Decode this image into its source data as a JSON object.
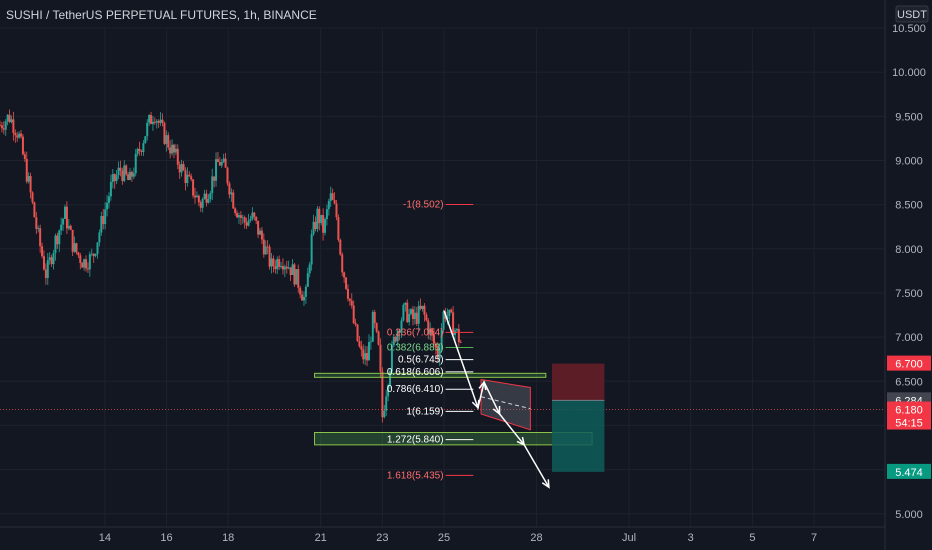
{
  "header": {
    "title": "SUSHI / TetherUS PERPETUAL FUTURES, 1h, BINANCE",
    "currency_badge": "USDT"
  },
  "colors": {
    "background": "#131722",
    "grid": "#1e222d",
    "text": "#b2b5be",
    "up": "#26a69a",
    "down": "#ef5350",
    "fib_red": "#f23645",
    "fib_green": "#4caf50",
    "zone_fill": "#4caf50",
    "target_fill": "#0f5d5a",
    "stop_fill": "#6b1f28"
  },
  "chart_data": {
    "type": "candlestick",
    "title": "SUSHI / TetherUS PERPETUAL FUTURES, 1h, BINANCE",
    "ylim": [
      4.85,
      10.5
    ],
    "xlim": [
      10.6,
      39.3
    ],
    "y_ticks": [
      {
        "value": 5.0,
        "label": "5.000"
      },
      {
        "value": 5.5,
        "label": "5.500"
      },
      {
        "value": 6.0,
        "label": "6.000"
      },
      {
        "value": 6.5,
        "label": "6.500"
      },
      {
        "value": 7.0,
        "label": "7.000"
      },
      {
        "value": 7.5,
        "label": "7.500"
      },
      {
        "value": 8.0,
        "label": "8.000"
      },
      {
        "value": 8.5,
        "label": "8.500"
      },
      {
        "value": 9.0,
        "label": "9.000"
      },
      {
        "value": 9.5,
        "label": "9.500"
      },
      {
        "value": 10.0,
        "label": "10.000"
      },
      {
        "value": 10.5,
        "label": "10.500"
      }
    ],
    "x_ticks": [
      {
        "day": 14,
        "label": "14"
      },
      {
        "day": 16,
        "label": "16"
      },
      {
        "day": 18,
        "label": "18"
      },
      {
        "day": 21,
        "label": "21"
      },
      {
        "day": 23,
        "label": "23"
      },
      {
        "day": 25,
        "label": "25"
      },
      {
        "day": 28,
        "label": "28"
      },
      {
        "day": 31,
        "label": "Jul"
      },
      {
        "day": 33,
        "label": "3"
      },
      {
        "day": 35,
        "label": "5"
      },
      {
        "day": 37,
        "label": "7"
      }
    ],
    "price_path": [
      [
        10.6,
        9.4
      ],
      [
        10.9,
        9.5
      ],
      [
        11.2,
        9.3
      ],
      [
        11.5,
        8.8
      ],
      [
        11.8,
        8.2
      ],
      [
        12.1,
        7.7
      ],
      [
        12.4,
        8.1
      ],
      [
        12.7,
        8.4
      ],
      [
        13.0,
        8.0
      ],
      [
        13.3,
        7.85
      ],
      [
        13.6,
        7.9
      ],
      [
        13.9,
        8.3
      ],
      [
        14.2,
        8.7
      ],
      [
        14.5,
        8.9
      ],
      [
        14.8,
        8.75
      ],
      [
        15.1,
        9.1
      ],
      [
        15.4,
        9.4
      ],
      [
        15.6,
        9.55
      ],
      [
        15.9,
        9.3
      ],
      [
        16.2,
        9.1
      ],
      [
        16.5,
        8.9
      ],
      [
        16.8,
        8.7
      ],
      [
        17.1,
        8.5
      ],
      [
        17.4,
        8.7
      ],
      [
        17.7,
        9.0
      ],
      [
        17.9,
        8.9
      ],
      [
        18.2,
        8.5
      ],
      [
        18.5,
        8.3
      ],
      [
        18.8,
        8.35
      ],
      [
        19.1,
        8.1
      ],
      [
        19.4,
        7.8
      ],
      [
        19.7,
        7.9
      ],
      [
        20.0,
        7.8
      ],
      [
        20.3,
        7.6
      ],
      [
        20.5,
        7.4
      ],
      [
        20.7,
        8.1
      ],
      [
        20.9,
        8.4
      ],
      [
        21.1,
        8.2
      ],
      [
        21.3,
        8.6
      ],
      [
        21.5,
        8.4
      ],
      [
        21.7,
        7.8
      ],
      [
        21.9,
        7.5
      ],
      [
        22.1,
        7.1
      ],
      [
        22.3,
        6.8
      ],
      [
        22.5,
        6.75
      ],
      [
        22.7,
        7.2
      ],
      [
        22.9,
        6.8
      ],
      [
        23.0,
        6.1
      ],
      [
        23.2,
        6.6
      ],
      [
        23.4,
        7.0
      ],
      [
        23.7,
        7.3
      ],
      [
        24.0,
        7.2
      ],
      [
        24.3,
        7.3
      ],
      [
        24.6,
        7.0
      ],
      [
        24.8,
        6.8
      ],
      [
        25.0,
        7.3
      ],
      [
        25.2,
        7.2
      ],
      [
        25.4,
        7.05
      ],
      [
        25.6,
        6.9
      ]
    ],
    "projection": [
      {
        "day": 25.0,
        "value": 7.3
      },
      {
        "day": 26.1,
        "value": 6.2
      },
      {
        "day": 26.3,
        "value": 6.49
      },
      {
        "day": 26.8,
        "value": 6.13
      },
      {
        "day": 27.6,
        "value": 5.78
      },
      {
        "day": 28.4,
        "value": 5.3
      }
    ],
    "fib_levels": [
      {
        "label": "-1(8.502)",
        "value": 8.502,
        "color": "red"
      },
      {
        "label": "0.236(7.054)",
        "value": 7.054,
        "color": "red"
      },
      {
        "label": "0.382(6.883)",
        "value": 6.883,
        "color": "green"
      },
      {
        "label": "0.5(6.745)",
        "value": 6.745,
        "color": "white"
      },
      {
        "label": "0.618(6.606)",
        "value": 6.606,
        "color": "white"
      },
      {
        "label": "0.786(6.410)",
        "value": 6.41,
        "color": "white"
      },
      {
        "label": "1(6.159)",
        "value": 6.159,
        "color": "white"
      },
      {
        "label": "1.272(5.840)",
        "value": 5.84,
        "color": "white"
      },
      {
        "label": "1.618(5.435)",
        "value": 5.435,
        "color": "red"
      }
    ],
    "zones": [
      {
        "day_start": 20.8,
        "day_end": 28.3,
        "top": 6.59,
        "bottom": 6.55
      },
      {
        "day_start": 20.8,
        "day_end": 29.8,
        "top": 5.92,
        "bottom": 5.78
      }
    ],
    "channel": {
      "left_top": 6.52,
      "right_top": 6.43,
      "left_bottom": 6.13,
      "right_bottom": 5.95,
      "day_start": 26.2,
      "day_end": 27.8
    },
    "position": {
      "day_start": 28.5,
      "day_end": 30.2,
      "stop": 6.7,
      "entry": 6.284,
      "target": 5.474
    },
    "price_labels": [
      {
        "id": "stop",
        "text": "6.700",
        "value": 6.7,
        "color": "#f23645"
      },
      {
        "id": "entry",
        "text": "6.284",
        "value": 6.284,
        "color": "#434651"
      },
      {
        "id": "last",
        "text": "6.180",
        "value": 6.18,
        "color": "#f23645"
      },
      {
        "id": "target",
        "text": "5.474",
        "value": 5.474,
        "color": "#089981"
      }
    ],
    "countdown": "54:15",
    "last_price": 6.18
  }
}
